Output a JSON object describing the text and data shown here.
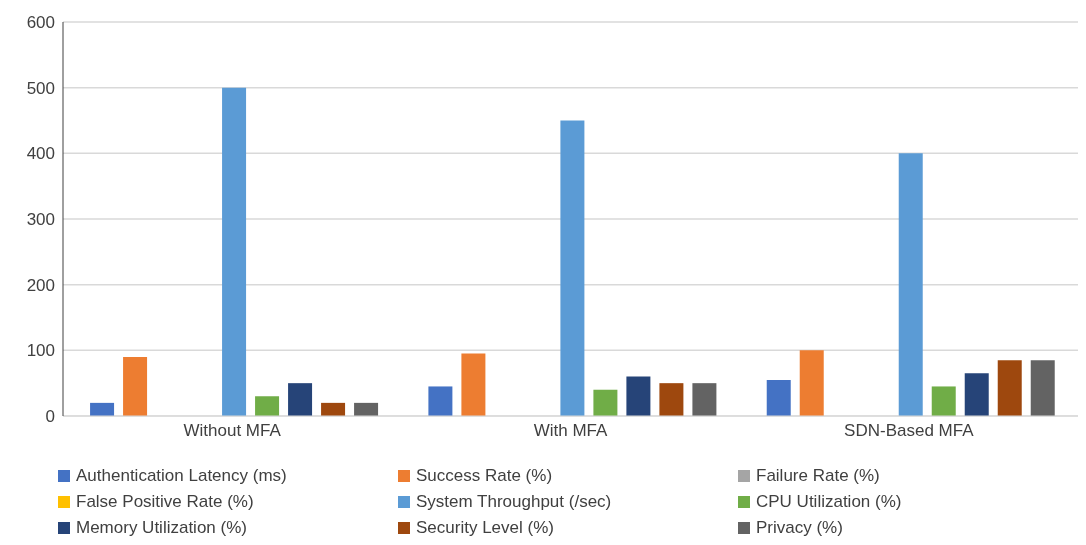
{
  "chart_data": {
    "type": "bar",
    "categories": [
      "Without MFA",
      "With MFA",
      "SDN-Based MFA"
    ],
    "series": [
      {
        "name": "Authentication Latency (ms)",
        "color": "#4472c4",
        "values": [
          20,
          45,
          55
        ]
      },
      {
        "name": "Success Rate (%)",
        "color": "#ed7d31",
        "values": [
          90,
          95,
          100
        ]
      },
      {
        "name": "Failure Rate (%)",
        "color": "#a5a5a5",
        "values": [
          0,
          0,
          0
        ]
      },
      {
        "name": "False Positive Rate (%)",
        "color": "#ffc000",
        "values": [
          0,
          0,
          0
        ]
      },
      {
        "name": "System Throughput (/sec)",
        "color": "#5b9bd5",
        "values": [
          500,
          450,
          400
        ]
      },
      {
        "name": "CPU Utilization (%)",
        "color": "#70ad47",
        "values": [
          30,
          40,
          45
        ]
      },
      {
        "name": "Memory Utilization (%)",
        "color": "#264478",
        "values": [
          50,
          60,
          65
        ]
      },
      {
        "name": "Security Level (%)",
        "color": "#9e480e",
        "values": [
          20,
          50,
          85
        ]
      },
      {
        "name": "Privacy (%)",
        "color": "#636363",
        "values": [
          20,
          50,
          85
        ]
      }
    ],
    "ylim": [
      0,
      600
    ],
    "yticks": [
      0,
      100,
      200,
      300,
      400,
      500,
      600
    ],
    "grid": "y",
    "legend": "bottom"
  }
}
